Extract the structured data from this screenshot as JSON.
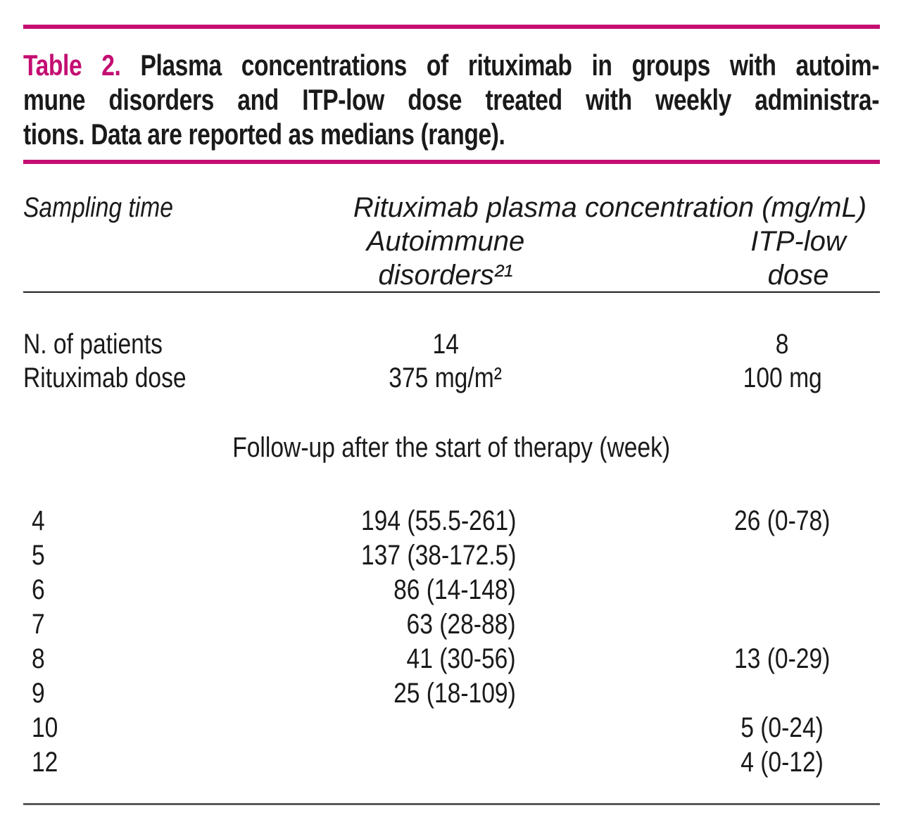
{
  "accent_color": "#c40e72",
  "caption": {
    "label": "Table 2.",
    "line1_rest": " Plasma concentrations of rituximab in groups with autoim-",
    "line2": "mune disorders and ITP-low dose treated with weekly administra-",
    "line3": "tions. Data are reported as medians (range)."
  },
  "header": {
    "sampling_time": "Sampling time",
    "concentration_span": "Rituximab plasma concentration (mg/mL)",
    "autoimmune": "Autoimmune disorders²¹",
    "itp": "ITP-low dose"
  },
  "info_rows": [
    {
      "label": "N. of patients",
      "autoimmune": "14",
      "itp": "8"
    },
    {
      "label": "Rituximab dose",
      "autoimmune": "375 mg/m²",
      "itp": "100 mg"
    }
  ],
  "section_note": "Follow-up after the start of therapy (week)",
  "weeks": [
    {
      "week": "4",
      "autoimmune": "194 (55.5-261)",
      "itp": "26 (0-78)"
    },
    {
      "week": "5",
      "autoimmune": "137 (38-172.5)",
      "itp": ""
    },
    {
      "week": "6",
      "autoimmune": "86 (14-148)",
      "itp": ""
    },
    {
      "week": "7",
      "autoimmune": "63 (28-88)",
      "itp": ""
    },
    {
      "week": "8",
      "autoimmune": "41 (30-56)",
      "itp": "13 (0-29)"
    },
    {
      "week": "9",
      "autoimmune": "25 (18-109)",
      "itp": ""
    },
    {
      "week": "10",
      "autoimmune": "",
      "itp": "5 (0-24)"
    },
    {
      "week": "12",
      "autoimmune": "",
      "itp": "4 (0-12)"
    }
  ]
}
